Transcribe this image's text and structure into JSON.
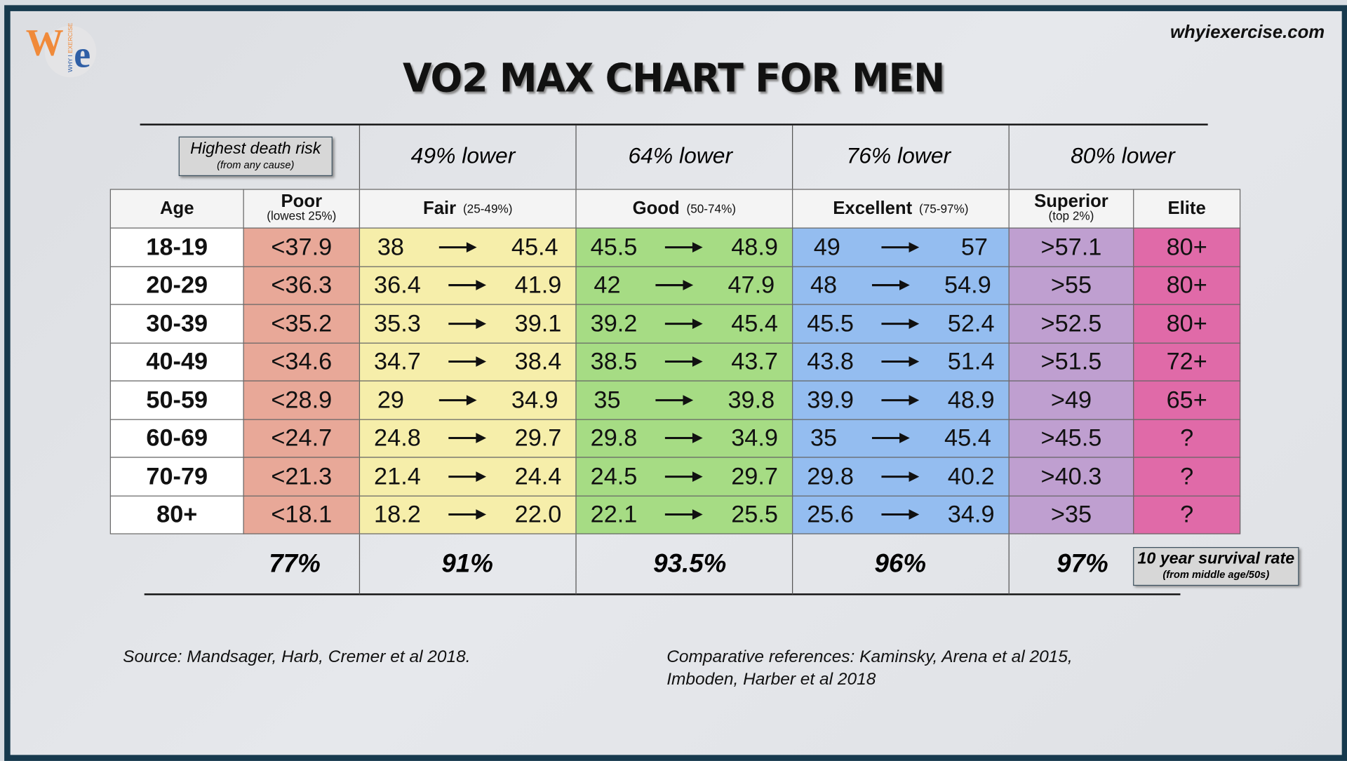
{
  "site": "whyiexercise.com",
  "logo_text": "We WHY I EXERCISE",
  "title": "VO2 MAX CHART FOR MEN",
  "death_risk_box": {
    "title": "Highest death risk",
    "sub": "(from any cause)"
  },
  "risk_labels": [
    "49% lower",
    "64% lower",
    "76% lower",
    "80% lower"
  ],
  "chart_data": {
    "type": "table",
    "columns": [
      {
        "label": "Age",
        "sub": ""
      },
      {
        "label": "Poor",
        "sub": "(lowest 25%)",
        "color": "#e8a898"
      },
      {
        "label": "Fair",
        "sub": "(25-49%)",
        "color": "#f6eeaa"
      },
      {
        "label": "Good",
        "sub": "(50-74%)",
        "color": "#a6dc84"
      },
      {
        "label": "Excellent",
        "sub": "(75-97%)",
        "color": "#94bdf0"
      },
      {
        "label": "Superior",
        "sub": "(top 2%)",
        "color": "#bf9fd0"
      },
      {
        "label": "Elite",
        "sub": "",
        "color": "#e06aa8"
      }
    ],
    "rows": [
      {
        "age": "18-19",
        "poor": "<37.9",
        "fair": [
          "38",
          "45.4"
        ],
        "good": [
          "45.5",
          "48.9"
        ],
        "excellent": [
          "49",
          "57"
        ],
        "superior": ">57.1",
        "elite": "80+"
      },
      {
        "age": "20-29",
        "poor": "<36.3",
        "fair": [
          "36.4",
          "41.9"
        ],
        "good": [
          "42",
          "47.9"
        ],
        "excellent": [
          "48",
          "54.9"
        ],
        "superior": ">55",
        "elite": "80+"
      },
      {
        "age": "30-39",
        "poor": "<35.2",
        "fair": [
          "35.3",
          "39.1"
        ],
        "good": [
          "39.2",
          "45.4"
        ],
        "excellent": [
          "45.5",
          "52.4"
        ],
        "superior": ">52.5",
        "elite": "80+"
      },
      {
        "age": "40-49",
        "poor": "<34.6",
        "fair": [
          "34.7",
          "38.4"
        ],
        "good": [
          "38.5",
          "43.7"
        ],
        "excellent": [
          "43.8",
          "51.4"
        ],
        "superior": ">51.5",
        "elite": "72+"
      },
      {
        "age": "50-59",
        "poor": "<28.9",
        "fair": [
          "29",
          "34.9"
        ],
        "good": [
          "35",
          "39.8"
        ],
        "excellent": [
          "39.9",
          "48.9"
        ],
        "superior": ">49",
        "elite": "65+"
      },
      {
        "age": "60-69",
        "poor": "<24.7",
        "fair": [
          "24.8",
          "29.7"
        ],
        "good": [
          "29.8",
          "34.9"
        ],
        "excellent": [
          "35",
          "45.4"
        ],
        "superior": ">45.5",
        "elite": "?"
      },
      {
        "age": "70-79",
        "poor": "<21.3",
        "fair": [
          "21.4",
          "24.4"
        ],
        "good": [
          "24.5",
          "29.7"
        ],
        "excellent": [
          "29.8",
          "40.2"
        ],
        "superior": ">40.3",
        "elite": "?"
      },
      {
        "age": "80+",
        "poor": "<18.1",
        "fair": [
          "18.2",
          "22.0"
        ],
        "good": [
          "22.1",
          "25.5"
        ],
        "excellent": [
          "25.6",
          "34.9"
        ],
        "superior": ">35",
        "elite": "?"
      }
    ],
    "survival_rates": [
      "77%",
      "91%",
      "93.5%",
      "96%",
      "97%"
    ]
  },
  "survival_box": {
    "title": "10 year survival rate",
    "sub": "(from middle age/50s)"
  },
  "source": "Source:  Mandsager, Harb, Cremer et al 2018.",
  "references": [
    "Comparative references:  Kaminsky, Arena et al 2015,",
    "Imboden, Harber et al 2018"
  ]
}
